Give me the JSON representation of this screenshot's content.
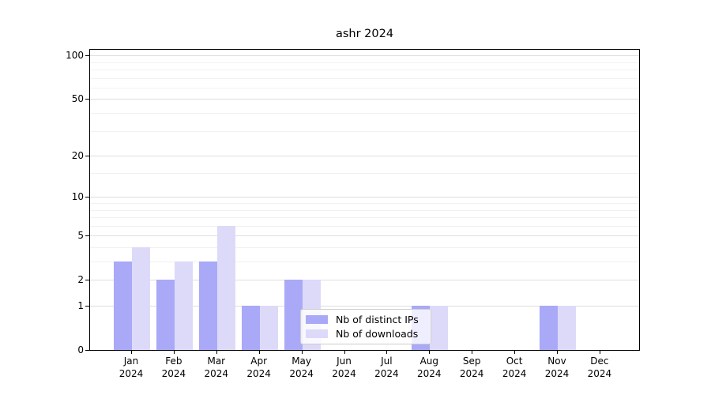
{
  "chart_data": {
    "type": "bar",
    "title": "ashr 2024",
    "xlabel": "",
    "ylabel": "",
    "categories": [
      "Jan",
      "Feb",
      "Mar",
      "Apr",
      "May",
      "Jun",
      "Jul",
      "Aug",
      "Sep",
      "Oct",
      "Nov",
      "Dec"
    ],
    "x_year_label": "2024",
    "series": [
      {
        "name": "Nb of distinct IPs",
        "color": "#a9a9f8",
        "values": [
          3,
          2,
          3,
          1,
          2,
          0,
          0,
          1,
          0,
          0,
          1,
          0
        ]
      },
      {
        "name": "Nb of downloads",
        "color": "#dcdaf8",
        "values": [
          4,
          3,
          6,
          1,
          2,
          0,
          0,
          1,
          0,
          0,
          1,
          0
        ]
      }
    ],
    "y_scale": "log10(1+x)",
    "y_ticks": [
      0,
      1,
      2,
      5,
      10,
      20,
      50,
      100
    ],
    "y_tick_labels": [
      "0",
      "1",
      "2",
      "5",
      "10",
      "20",
      "50",
      "100"
    ],
    "y_minor_gridlines": [
      3,
      4,
      6,
      7,
      8,
      9,
      15,
      30,
      40,
      60,
      70,
      80,
      90
    ],
    "ylim": [
      0,
      112
    ],
    "grid": "on",
    "legend_position": "lower center"
  },
  "colors": {
    "background": "#ffffff",
    "axis_frame": "#000000",
    "grid_major": "#dedede",
    "grid_minor": "#f1f1f1",
    "text": "#000000",
    "legend_border": "#cccccc"
  }
}
